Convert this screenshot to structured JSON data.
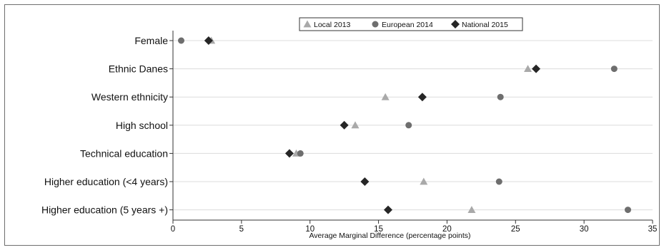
{
  "chart_data": {
    "type": "scatter",
    "title": "",
    "xlabel": "Average Marginal Difference (percentage points)",
    "ylabel": "",
    "xlim": [
      0,
      35
    ],
    "xticks": [
      0,
      5,
      10,
      15,
      20,
      25,
      30,
      35
    ],
    "grid": true,
    "legend_position": "top-center",
    "categories": [
      "Female",
      "Ethnic Danes",
      "Western ethnicity",
      "High school",
      "Technical education",
      "Higher education (<4 years)",
      "Higher education (5 years +)"
    ],
    "series": [
      {
        "name": "Local 2013",
        "marker": "triangle",
        "color": "#a9a9a9",
        "values": [
          2.8,
          25.9,
          15.5,
          13.3,
          9.0,
          18.3,
          21.8
        ]
      },
      {
        "name": "European 2014",
        "marker": "circle",
        "color": "#6e6e6e",
        "values": [
          0.6,
          32.2,
          23.9,
          17.2,
          9.3,
          23.8,
          33.2
        ]
      },
      {
        "name": "National 2015",
        "marker": "diamond",
        "color": "#262626",
        "values": [
          2.6,
          26.5,
          18.2,
          12.5,
          8.5,
          14.0,
          15.7
        ]
      }
    ]
  }
}
